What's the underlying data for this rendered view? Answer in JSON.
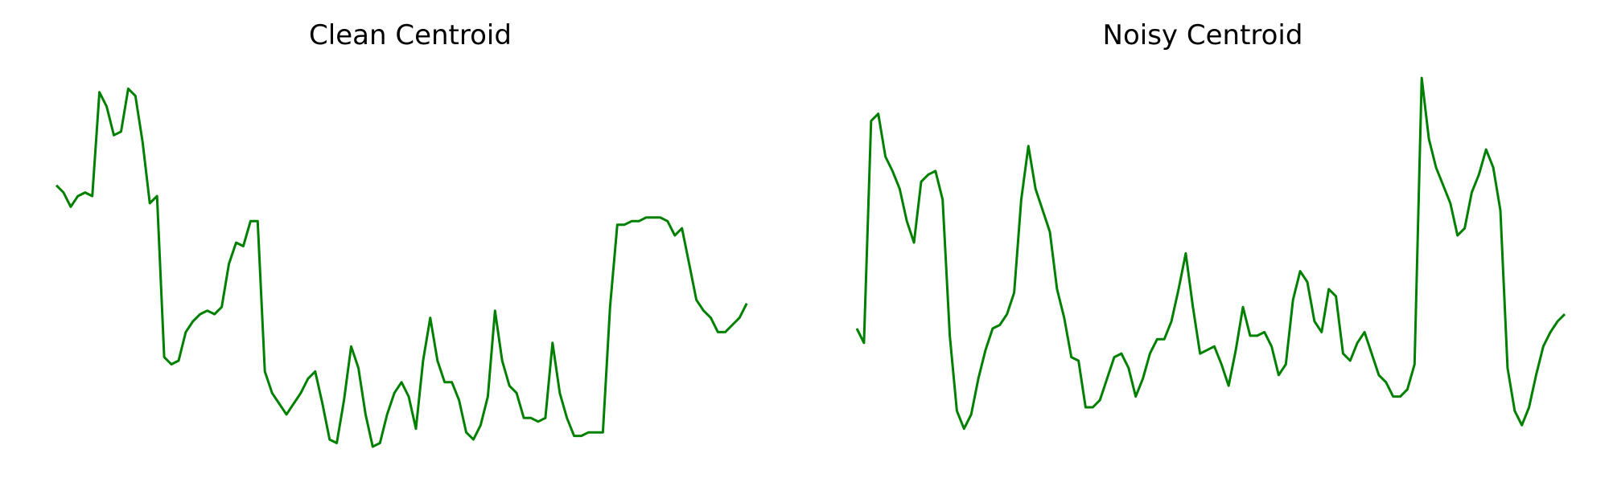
{
  "chart_data": [
    {
      "type": "line",
      "title": "Clean Centroid",
      "xlabel": "",
      "ylabel": "",
      "grid": false,
      "axes_visible": false,
      "color": "#008000",
      "x": [
        0,
        1,
        2,
        3,
        4,
        5,
        6,
        7,
        8,
        9,
        10,
        11,
        12,
        13,
        14,
        15,
        16,
        17,
        18,
        19,
        20,
        21,
        22,
        23,
        24,
        25,
        26,
        27,
        28,
        29,
        30,
        31,
        32,
        33,
        34,
        35,
        36,
        37,
        38,
        39,
        40,
        41,
        42,
        43,
        44,
        45,
        46,
        47,
        48,
        49,
        50,
        51,
        52,
        53,
        54,
        55,
        56,
        57,
        58,
        59,
        60,
        61,
        62,
        63,
        64,
        65,
        66,
        67,
        68,
        69,
        70,
        71,
        72,
        73,
        74,
        75,
        76,
        77,
        78,
        79,
        80,
        81,
        82,
        83,
        84,
        85,
        86,
        87,
        88,
        89,
        90,
        91,
        92,
        93,
        94,
        95,
        96,
        97,
        98,
        99
      ],
      "y": [
        0.7,
        0.68,
        0.64,
        0.67,
        0.68,
        0.67,
        0.96,
        0.92,
        0.84,
        0.85,
        0.97,
        0.95,
        0.82,
        0.65,
        0.67,
        0.22,
        0.2,
        0.21,
        0.29,
        0.32,
        0.34,
        0.35,
        0.34,
        0.36,
        0.48,
        0.54,
        0.53,
        0.6,
        0.6,
        0.18,
        0.12,
        0.09,
        0.06,
        0.09,
        0.12,
        0.16,
        0.18,
        0.09,
        -0.01,
        -0.02,
        0.1,
        0.25,
        0.19,
        0.06,
        -0.03,
        -0.02,
        0.06,
        0.12,
        0.15,
        0.11,
        0.02,
        0.21,
        0.33,
        0.21,
        0.15,
        0.15,
        0.1,
        0.01,
        -0.01,
        0.03,
        0.11,
        0.35,
        0.21,
        0.14,
        0.12,
        0.05,
        0.05,
        0.04,
        0.05,
        0.26,
        0.12,
        0.05,
        0.0,
        0.0,
        0.01,
        0.01,
        0.01,
        0.36,
        0.59,
        0.59,
        0.6,
        0.6,
        0.61,
        0.61,
        0.61,
        0.6,
        0.56,
        0.58,
        0.48,
        0.38,
        0.35,
        0.33,
        0.29,
        0.29,
        0.31,
        0.33,
        0.37,
        null,
        null,
        null
      ]
    },
    {
      "type": "line",
      "title": "Noisy Centroid",
      "xlabel": "",
      "ylabel": "",
      "grid": false,
      "axes_visible": false,
      "color": "#008000",
      "x": [
        0,
        1,
        2,
        3,
        4,
        5,
        6,
        7,
        8,
        9,
        10,
        11,
        12,
        13,
        14,
        15,
        16,
        17,
        18,
        19,
        20,
        21,
        22,
        23,
        24,
        25,
        26,
        27,
        28,
        29,
        30,
        31,
        32,
        33,
        34,
        35,
        36,
        37,
        38,
        39,
        40,
        41,
        42,
        43,
        44,
        45,
        46,
        47,
        48,
        49,
        50,
        51,
        52,
        53,
        54,
        55,
        56,
        57,
        58,
        59,
        60,
        61,
        62,
        63,
        64,
        65,
        66,
        67,
        68,
        69,
        70,
        71,
        72,
        73,
        74,
        75,
        76,
        77,
        78,
        79,
        80,
        81,
        82,
        83,
        84,
        85,
        86,
        87,
        88,
        89,
        90,
        91,
        92,
        93,
        94,
        95,
        96,
        97,
        98,
        99
      ],
      "y": [
        0.3,
        0.26,
        0.88,
        0.9,
        0.78,
        0.74,
        0.69,
        0.6,
        0.54,
        0.71,
        0.73,
        0.74,
        0.66,
        0.28,
        0.07,
        0.02,
        0.06,
        0.16,
        0.24,
        0.3,
        0.31,
        0.34,
        0.4,
        0.66,
        0.81,
        0.69,
        0.63,
        0.57,
        0.41,
        0.33,
        0.22,
        0.21,
        0.08,
        0.08,
        0.1,
        0.16,
        0.22,
        0.23,
        0.19,
        0.11,
        0.16,
        0.23,
        0.27,
        0.27,
        0.32,
        0.41,
        0.51,
        0.36,
        0.23,
        0.24,
        0.25,
        0.2,
        0.14,
        0.24,
        0.36,
        0.28,
        0.28,
        0.29,
        0.25,
        0.17,
        0.2,
        0.38,
        0.46,
        0.43,
        0.32,
        0.29,
        0.41,
        0.39,
        0.23,
        0.21,
        0.26,
        0.29,
        0.23,
        0.17,
        0.15,
        0.11,
        0.11,
        0.13,
        0.2,
        1.0,
        0.83,
        0.75,
        0.7,
        0.65,
        0.56,
        0.58,
        0.68,
        0.73,
        0.8,
        0.75,
        0.63,
        0.19,
        0.07,
        0.03,
        0.08,
        0.17,
        0.25,
        0.29,
        0.32,
        0.34
      ]
    }
  ]
}
